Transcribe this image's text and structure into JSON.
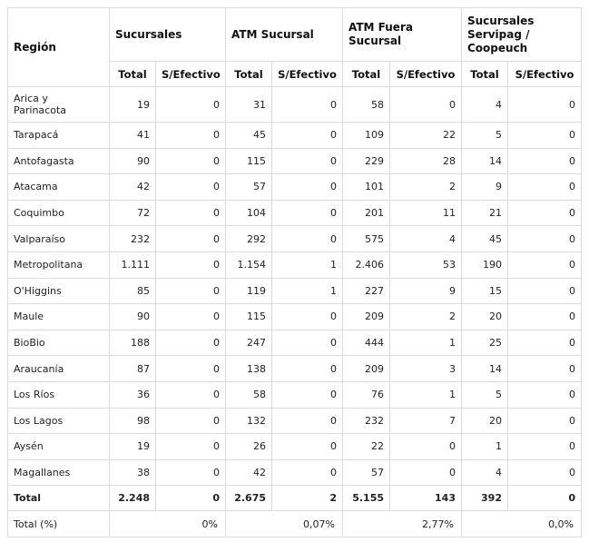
{
  "headers": {
    "region": "Región",
    "groups": [
      "Sucursales",
      "ATM Sucursal",
      "ATM Fuera Sucursal",
      "Sucursales Servipag / Coopeuch"
    ],
    "sub_total": "Total",
    "sub_sin_efectivo": "S/Efectivo"
  },
  "rows": [
    {
      "region": "Arica y Parinacota",
      "values": [
        "19",
        "0",
        "31",
        "0",
        "58",
        "0",
        "4",
        "0"
      ]
    },
    {
      "region": "Tarapacá",
      "values": [
        "41",
        "0",
        "45",
        "0",
        "109",
        "22",
        "5",
        "0"
      ]
    },
    {
      "region": "Antofagasta",
      "values": [
        "90",
        "0",
        "115",
        "0",
        "229",
        "28",
        "14",
        "0"
      ]
    },
    {
      "region": "Atacama",
      "values": [
        "42",
        "0",
        "57",
        "0",
        "101",
        "2",
        "9",
        "0"
      ]
    },
    {
      "region": "Coquimbo",
      "values": [
        "72",
        "0",
        "104",
        "0",
        "201",
        "11",
        "21",
        "0"
      ]
    },
    {
      "region": "Valparaíso",
      "values": [
        "232",
        "0",
        "292",
        "0",
        "575",
        "4",
        "45",
        "0"
      ]
    },
    {
      "region": "Metropolitana",
      "values": [
        "1.111",
        "0",
        "1.154",
        "1",
        "2.406",
        "53",
        "190",
        "0"
      ]
    },
    {
      "region": "O'Higgins",
      "values": [
        "85",
        "0",
        "119",
        "1",
        "227",
        "9",
        "15",
        "0"
      ]
    },
    {
      "region": "Maule",
      "values": [
        "90",
        "0",
        "115",
        "0",
        "209",
        "2",
        "20",
        "0"
      ]
    },
    {
      "region": "BioBio",
      "values": [
        "188",
        "0",
        "247",
        "0",
        "444",
        "1",
        "25",
        "0"
      ]
    },
    {
      "region": "Araucanía",
      "values": [
        "87",
        "0",
        "138",
        "0",
        "209",
        "3",
        "14",
        "0"
      ]
    },
    {
      "region": "Los Ríos",
      "values": [
        "36",
        "0",
        "58",
        "0",
        "76",
        "1",
        "5",
        "0"
      ]
    },
    {
      "region": "Los Lagos",
      "values": [
        "98",
        "0",
        "132",
        "0",
        "232",
        "7",
        "20",
        "0"
      ]
    },
    {
      "region": "Aysén",
      "values": [
        "19",
        "0",
        "26",
        "0",
        "22",
        "0",
        "1",
        "0"
      ]
    },
    {
      "region": "Magallanes",
      "values": [
        "38",
        "0",
        "42",
        "0",
        "57",
        "0",
        "4",
        "0"
      ]
    }
  ],
  "total": {
    "label": "Total",
    "values": [
      "2.248",
      "0",
      "2.675",
      "2",
      "5.155",
      "143",
      "392",
      "0"
    ]
  },
  "percent": {
    "label": "Total (%)",
    "values": [
      "0%",
      "0,07%",
      "2,77%",
      "0,0%"
    ]
  }
}
